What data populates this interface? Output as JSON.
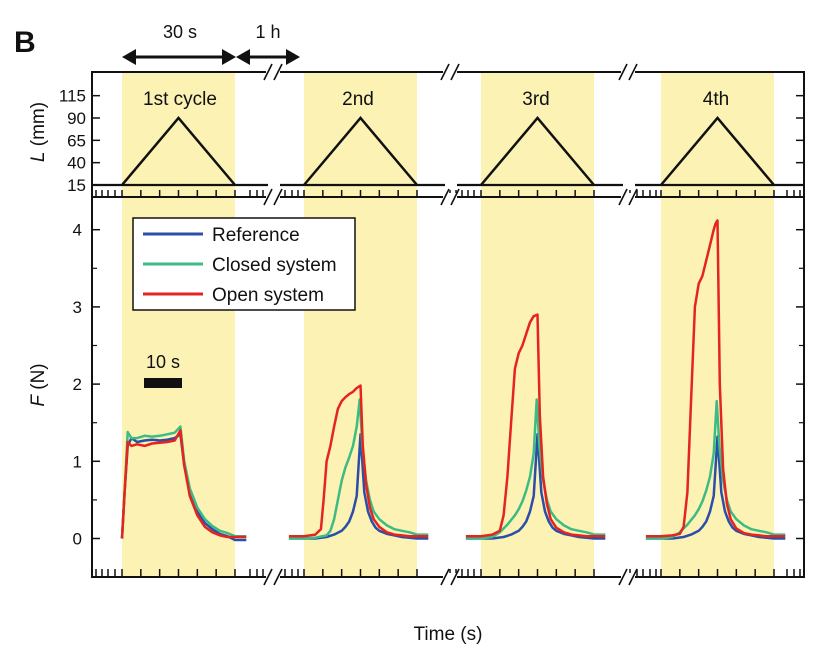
{
  "panel_letter": "B",
  "time_annotations": {
    "cycle_span": "30 s",
    "rest_span": "1 h",
    "scale_bar": "10 s"
  },
  "x_axis_label": "Time (s)",
  "cycle_labels": [
    "1st cycle",
    "2nd",
    "3rd",
    "4th"
  ],
  "colors": {
    "reference": "#2b4fa8",
    "closed": "#3dbb84",
    "open": "#e52420",
    "shade": "#fbf2b4",
    "axis": "#111111"
  },
  "chart_data": [
    {
      "type": "line",
      "name": "length-panel",
      "ylabel_var": "L",
      "ylabel_unit": "(mm)",
      "y_ticks": [
        15,
        40,
        65,
        90,
        115
      ],
      "ylim": [
        5,
        125
      ],
      "grid": false,
      "cycle_profile": {
        "x": [
          0,
          15,
          30
        ],
        "y": [
          15,
          90,
          15
        ]
      },
      "baseline": 15
    },
    {
      "type": "line",
      "name": "force-panel",
      "ylabel_var": "F",
      "ylabel_unit": "(N)",
      "y_ticks": [
        0,
        1,
        2,
        3,
        4
      ],
      "ylim": [
        -0.3,
        4.35
      ],
      "grid": false,
      "legend": {
        "placement": "top-left",
        "entries": [
          "Reference",
          "Closed system",
          "Open system"
        ]
      },
      "series": [
        {
          "name": "Reference",
          "cycles": [
            {
              "x": [
                0,
                0.7,
                1.5,
                2.5,
                4,
                6,
                8,
                10,
                12,
                14,
                15.5,
                16.5,
                18,
                20,
                22,
                24,
                26,
                28,
                30,
                33
              ],
              "y": [
                0,
                0.6,
                1.2,
                1.3,
                1.25,
                1.27,
                1.28,
                1.27,
                1.28,
                1.3,
                1.35,
                0.95,
                0.6,
                0.35,
                0.2,
                0.12,
                0.06,
                0.03,
                -0.02,
                -0.02
              ]
            },
            {
              "x": [
                -4,
                0,
                3,
                6,
                8,
                10,
                11,
                12,
                13,
                14,
                15,
                16,
                17,
                18,
                19,
                20,
                22,
                24,
                26,
                28,
                30,
                33
              ],
              "y": [
                0,
                0,
                0,
                0.02,
                0.05,
                0.1,
                0.15,
                0.22,
                0.35,
                0.55,
                1.35,
                0.6,
                0.35,
                0.22,
                0.14,
                0.1,
                0.06,
                0.04,
                0.02,
                0.01,
                0,
                0
              ]
            },
            {
              "x": [
                -4,
                0,
                3,
                6,
                8,
                10,
                11,
                12,
                13,
                14,
                15,
                16,
                17,
                18,
                19,
                20,
                22,
                24,
                26,
                28,
                30,
                33
              ],
              "y": [
                0,
                0,
                0,
                0.02,
                0.05,
                0.1,
                0.15,
                0.22,
                0.35,
                0.55,
                1.35,
                0.6,
                0.35,
                0.22,
                0.14,
                0.1,
                0.06,
                0.04,
                0.02,
                0.01,
                0,
                0
              ]
            },
            {
              "x": [
                -4,
                0,
                3,
                6,
                8,
                10,
                11,
                12,
                13,
                14,
                15,
                16,
                17,
                18,
                19,
                20,
                22,
                24,
                26,
                28,
                30,
                33
              ],
              "y": [
                0,
                0,
                0,
                0.02,
                0.05,
                0.1,
                0.15,
                0.22,
                0.35,
                0.55,
                1.32,
                0.6,
                0.35,
                0.22,
                0.14,
                0.1,
                0.06,
                0.04,
                0.02,
                0.01,
                0,
                0
              ]
            }
          ]
        },
        {
          "name": "Closed system",
          "cycles": [
            {
              "x": [
                0,
                0.7,
                1.5,
                2.5,
                4,
                6,
                8,
                10,
                12,
                14,
                15.5,
                16.5,
                18,
                20,
                22,
                24,
                26,
                28,
                30,
                33
              ],
              "y": [
                0,
                0.6,
                1.38,
                1.3,
                1.3,
                1.33,
                1.32,
                1.33,
                1.35,
                1.37,
                1.45,
                1.0,
                0.65,
                0.4,
                0.25,
                0.16,
                0.1,
                0.07,
                0.03,
                0.03
              ]
            },
            {
              "x": [
                -4,
                0,
                3,
                6,
                7,
                8,
                9,
                10,
                11,
                12,
                13,
                14,
                14.8,
                15.5,
                16.5,
                17.5,
                18.5,
                20,
                22,
                24,
                26,
                28,
                30,
                33
              ],
              "y": [
                0,
                0,
                0.01,
                0.04,
                0.1,
                0.25,
                0.5,
                0.75,
                0.92,
                1.05,
                1.2,
                1.45,
                1.8,
                1.2,
                0.75,
                0.5,
                0.35,
                0.25,
                0.17,
                0.12,
                0.1,
                0.08,
                0.05,
                0.05
              ]
            },
            {
              "x": [
                -4,
                0,
                3,
                5,
                7,
                9,
                10,
                11,
                12,
                13,
                14,
                14.8,
                15.5,
                16.5,
                17.5,
                18.5,
                20,
                22,
                24,
                26,
                28,
                30,
                33
              ],
              "y": [
                0,
                0,
                0.02,
                0.08,
                0.18,
                0.3,
                0.38,
                0.48,
                0.62,
                0.8,
                1.1,
                1.8,
                1.2,
                0.75,
                0.5,
                0.35,
                0.25,
                0.17,
                0.12,
                0.1,
                0.08,
                0.05,
                0.05
              ]
            },
            {
              "x": [
                -4,
                0,
                3,
                5,
                7,
                9,
                10,
                11,
                12,
                13,
                14,
                14.8,
                15.5,
                16.5,
                17.5,
                18.5,
                20,
                22,
                24,
                26,
                28,
                30,
                33
              ],
              "y": [
                0,
                0,
                0.02,
                0.08,
                0.18,
                0.3,
                0.38,
                0.48,
                0.62,
                0.8,
                1.1,
                1.78,
                1.2,
                0.75,
                0.5,
                0.35,
                0.25,
                0.17,
                0.12,
                0.1,
                0.08,
                0.05,
                0.05
              ]
            }
          ]
        },
        {
          "name": "Open system",
          "cycles": [
            {
              "x": [
                0,
                0.7,
                1.5,
                2.5,
                4,
                6,
                8,
                10,
                12,
                14,
                15.5,
                16.5,
                18,
                20,
                22,
                24,
                26,
                28,
                30,
                33
              ],
              "y": [
                0,
                0.6,
                1.25,
                1.2,
                1.22,
                1.2,
                1.23,
                1.24,
                1.25,
                1.27,
                1.4,
                0.95,
                0.55,
                0.3,
                0.15,
                0.08,
                0.04,
                0.02,
                0.02,
                0.02
              ]
            },
            {
              "x": [
                -4,
                0,
                3,
                4.5,
                5.2,
                6,
                7,
                8,
                9,
                10,
                11,
                12,
                13,
                14,
                15,
                15.6,
                16.5,
                17.5,
                18.5,
                20,
                22,
                24,
                26,
                28,
                30,
                33
              ],
              "y": [
                0.03,
                0.03,
                0.05,
                0.12,
                0.5,
                1.0,
                1.2,
                1.45,
                1.68,
                1.78,
                1.83,
                1.87,
                1.9,
                1.95,
                1.98,
                1.2,
                0.7,
                0.4,
                0.25,
                0.15,
                0.08,
                0.05,
                0.04,
                0.03,
                0.03,
                0.03
              ]
            },
            {
              "x": [
                -4,
                0,
                3,
                5,
                6,
                7,
                8,
                9,
                10,
                11,
                12,
                13,
                14,
                15,
                15.6,
                16.5,
                17.5,
                18.5,
                20,
                22,
                24,
                26,
                28,
                30,
                33
              ],
              "y": [
                0.03,
                0.03,
                0.05,
                0.1,
                0.3,
                0.8,
                1.5,
                2.2,
                2.4,
                2.5,
                2.65,
                2.8,
                2.88,
                2.9,
                1.6,
                0.8,
                0.45,
                0.25,
                0.14,
                0.08,
                0.05,
                0.04,
                0.03,
                0.03,
                0.03
              ]
            },
            {
              "x": [
                -4,
                0,
                3,
                5,
                6,
                7,
                8,
                9,
                10,
                11,
                12,
                13,
                14,
                14.5,
                15,
                15.6,
                16.5,
                17.5,
                18.5,
                20,
                22,
                24,
                26,
                28,
                30,
                33
              ],
              "y": [
                0.03,
                0.03,
                0.04,
                0.06,
                0.15,
                0.6,
                1.8,
                3.0,
                3.3,
                3.4,
                3.6,
                3.8,
                4.0,
                4.08,
                4.12,
                2.0,
                0.9,
                0.45,
                0.25,
                0.13,
                0.07,
                0.05,
                0.04,
                0.03,
                0.03,
                0.03
              ]
            }
          ]
        }
      ]
    }
  ]
}
